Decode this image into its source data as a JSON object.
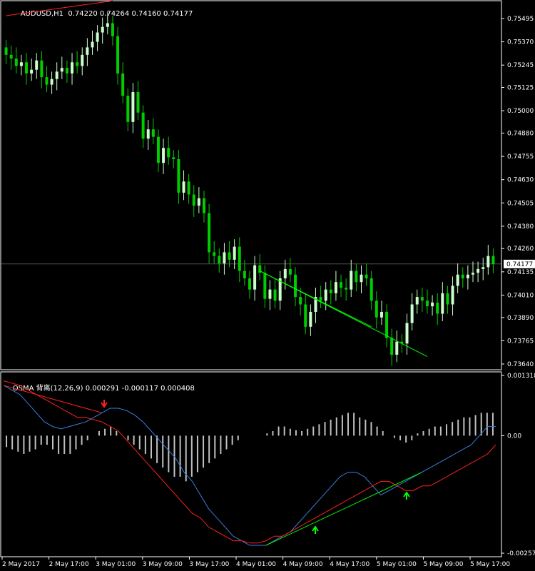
{
  "header": {
    "symbol": "AUDUSD,H1",
    "ohlc": "0.74220 0.74264 0.74160 0.74177"
  },
  "indicator_header": {
    "name": "OSMA 背离(12,26,9)",
    "values": "0.000291 -0.000117 0.000408"
  },
  "colors": {
    "background": "#000000",
    "axis": "#ffffff",
    "bull_candle": "#ccffcc",
    "bear_candle": "#00cc00",
    "trend_red": "#ff2020",
    "trend_green": "#00ff00",
    "blue_line": "#3b7ddd",
    "red_line": "#ff2020",
    "histogram": "#c0c0c0",
    "bid_line": "#a0a0a0"
  },
  "chart_data": [
    {
      "type": "candlestick",
      "title": "AUDUSD,H1",
      "ylim": [
        0.7364,
        0.7556
      ],
      "price_ticks": [
        "0.75495",
        "0.75370",
        "0.75245",
        "0.75125",
        "0.75000",
        "0.74880",
        "0.74755",
        "0.74630",
        "0.74505",
        "0.74380",
        "0.74260",
        "0.74135",
        "0.74010",
        "0.73890",
        "0.73765",
        "0.73640"
      ],
      "current_price": "0.74177",
      "time_labels": [
        "2 May 2017",
        "2 May 17:00",
        "3 May 01:00",
        "3 May 09:00",
        "3 May 17:00",
        "4 May 01:00",
        "4 May 09:00",
        "4 May 17:00",
        "5 May 01:00",
        "5 May 09:00",
        "5 May 17:00"
      ],
      "closes": [
        0.753,
        0.7528,
        0.7524,
        0.7526,
        0.752,
        0.7522,
        0.7527,
        0.7518,
        0.7514,
        0.7517,
        0.7521,
        0.7523,
        0.752,
        0.7526,
        0.7524,
        0.753,
        0.7534,
        0.7537,
        0.7542,
        0.7545,
        0.7547,
        0.754,
        0.752,
        0.7508,
        0.7494,
        0.751,
        0.7499,
        0.7485,
        0.749,
        0.7486,
        0.7472,
        0.748,
        0.7475,
        0.7474,
        0.7456,
        0.7462,
        0.7455,
        0.7449,
        0.7453,
        0.7445,
        0.7424,
        0.7422,
        0.7418,
        0.7424,
        0.742,
        0.7427,
        0.7414,
        0.741,
        0.7404,
        0.7417,
        0.7413,
        0.7399,
        0.7404,
        0.7398,
        0.741,
        0.7415,
        0.7412,
        0.74,
        0.7396,
        0.7384,
        0.7392,
        0.74,
        0.7398,
        0.7404,
        0.7402,
        0.7408,
        0.7405,
        0.7404,
        0.7414,
        0.7408,
        0.7412,
        0.741,
        0.7398,
        0.7389,
        0.7392,
        0.7378,
        0.7369,
        0.7376,
        0.7375,
        0.7386,
        0.7396,
        0.74,
        0.7398,
        0.7395,
        0.7397,
        0.7391,
        0.7402,
        0.7396,
        0.7406,
        0.7412,
        0.741,
        0.7412,
        0.7413,
        0.7415,
        0.7416,
        0.7422,
        0.74177
      ],
      "trendlines": [
        {
          "color": "red",
          "from": [
            0,
            0.7551
          ],
          "to": [
            21,
            0.7559
          ]
        },
        {
          "color": "green",
          "from": [
            50,
            0.7414
          ],
          "to": [
            72,
            0.7384
          ]
        },
        {
          "color": "green",
          "from": [
            50,
            0.7414
          ],
          "to": [
            83,
            0.7368
          ]
        }
      ]
    },
    {
      "type": "line+bar",
      "title": "OSMA 背离(12,26,9)",
      "ylim": [
        -0.002572,
        0.001318
      ],
      "axis_ticks": [
        "0.001318",
        "0.00",
        "-0.002572"
      ],
      "series": [
        {
          "values": [
            0.0011,
            0.001,
            0.0009,
            0.0007,
            0.0005,
            0.0003,
            0.0002,
            0.00015,
            0.0002,
            0.00025,
            0.0003,
            0.0004,
            0.0005,
            0.0006,
            0.0006,
            0.00055,
            0.00045,
            0.0003,
            0.0001,
            -0.0001,
            -0.0003,
            -0.0005,
            -0.0008,
            -0.001,
            -0.0013,
            -0.0016,
            -0.0018,
            -0.002,
            -0.0022,
            -0.0023,
            -0.0024,
            -0.0024,
            -0.0024,
            -0.0023,
            -0.0022,
            -0.0021,
            -0.0019,
            -0.0017,
            -0.0015,
            -0.0013,
            -0.0011,
            -0.0009,
            -0.0008,
            -0.0008,
            -0.0009,
            -0.0011,
            -0.0013,
            -0.0012,
            -0.0011,
            -0.001,
            -0.0009,
            -0.0008,
            -0.0007,
            -0.0006,
            -0.0005,
            -0.0004,
            -0.0003,
            -0.0002,
            0.0,
            0.0002,
            0.0002
          ]
        },
        {
          "values": [
            0.0012,
            0.00115,
            0.0011,
            0.001,
            0.0009,
            0.0008,
            0.0007,
            0.0006,
            0.0005,
            0.0004,
            0.0004,
            0.00035,
            0.0003,
            0.0002,
            0.0001,
            -0.0001,
            -0.0003,
            -0.0005,
            -0.0007,
            -0.0009,
            -0.0011,
            -0.0013,
            -0.0015,
            -0.0017,
            -0.0018,
            -0.002,
            -0.0021,
            -0.0022,
            -0.0023,
            -0.0023,
            -0.00235,
            -0.00235,
            -0.0023,
            -0.0022,
            -0.0022,
            -0.0021,
            -0.002,
            -0.0019,
            -0.0018,
            -0.0017,
            -0.0016,
            -0.0015,
            -0.0014,
            -0.0013,
            -0.0012,
            -0.0011,
            -0.001,
            -0.001,
            -0.0011,
            -0.0012,
            -0.0012,
            -0.0011,
            -0.0011,
            -0.001,
            -0.0009,
            -0.0008,
            -0.0007,
            -0.0006,
            -0.0005,
            -0.0004,
            -0.0002
          ]
        }
      ],
      "histogram": [
        -0.00025,
        -0.0003,
        -0.00035,
        -0.0004,
        -0.00035,
        -0.0003,
        -0.0002,
        -0.0002,
        -0.0003,
        -0.0004,
        -0.0004,
        -0.0004,
        -0.0003,
        -0.0002,
        -0.0001,
        0.0,
        0.0001,
        0.00015,
        0.0002,
        0.0001,
        0.0,
        -0.0001,
        -0.0002,
        -0.0003,
        -0.0004,
        -0.0005,
        -0.0006,
        -0.0007,
        -0.0008,
        -0.0009,
        -0.0009,
        -0.001,
        -0.0009,
        -0.0008,
        -0.0007,
        -0.0006,
        -0.0005,
        -0.0004,
        -0.0003,
        -0.0002,
        -0.0001,
        0.0,
        0.0,
        0.0,
        0.0,
        5e-05,
        0.0001,
        0.0002,
        0.0002,
        0.00015,
        0.00012,
        0.0001,
        0.00015,
        0.0002,
        0.00025,
        0.0003,
        0.00035,
        0.0004,
        0.00045,
        0.0005,
        0.0005,
        0.0004,
        0.00035,
        0.0003,
        0.0002,
        0.0001,
        0.0,
        -5e-05,
        -0.0001,
        -0.00015,
        -0.0001,
        5e-05,
        0.0001,
        0.00015,
        0.0002,
        0.0002,
        0.00025,
        0.0003,
        0.00035,
        0.0004,
        0.0004,
        0.00045,
        0.0005,
        0.0005,
        0.0005
      ]
    }
  ]
}
